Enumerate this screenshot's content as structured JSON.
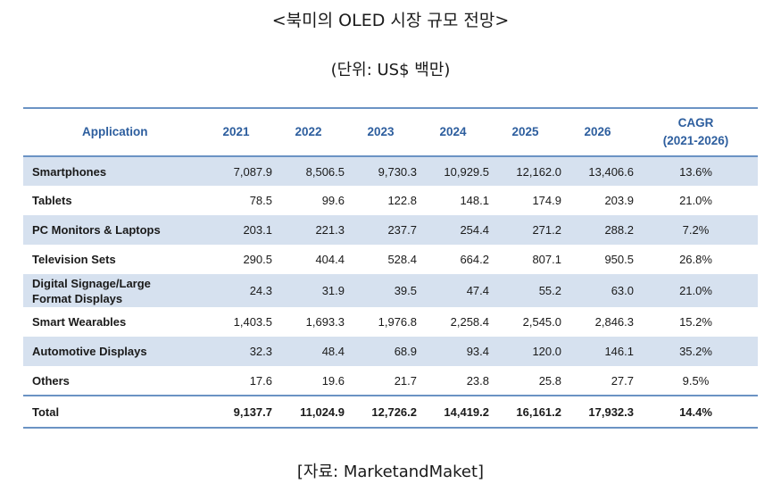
{
  "title": "<북미의 OLED 시장 규모 전망>",
  "unit_note": "(단위: US$ 백만)",
  "source": "[자료: MarketandMaket]",
  "table": {
    "headers": [
      "Application",
      "2021",
      "2022",
      "2023",
      "2024",
      "2025",
      "2026",
      "CAGR",
      "(2021-2026)"
    ],
    "rows": [
      {
        "name": "Smartphones",
        "values": [
          "7,087.9",
          "8,506.5",
          "9,730.3",
          "10,929.5",
          "12,162.0",
          "13,406.6"
        ],
        "cagr": "13.6%"
      },
      {
        "name": "Tablets",
        "values": [
          "78.5",
          "99.6",
          "122.8",
          "148.1",
          "174.9",
          "203.9"
        ],
        "cagr": "21.0%"
      },
      {
        "name": "PC Monitors & Laptops",
        "values": [
          "203.1",
          "221.3",
          "237.7",
          "254.4",
          "271.2",
          "288.2"
        ],
        "cagr": "7.2%"
      },
      {
        "name": "Television Sets",
        "values": [
          "290.5",
          "404.4",
          "528.4",
          "664.2",
          "807.1",
          "950.5"
        ],
        "cagr": "26.8%"
      },
      {
        "name": "Digital Signage/Large",
        "name2": "Format Displays",
        "values": [
          "24.3",
          "31.9",
          "39.5",
          "47.4",
          "55.2",
          "63.0"
        ],
        "cagr": "21.0%"
      },
      {
        "name": "Smart Wearables",
        "values": [
          "1,403.5",
          "1,693.3",
          "1,976.8",
          "2,258.4",
          "2,545.0",
          "2,846.3"
        ],
        "cagr": "15.2%"
      },
      {
        "name": "Automotive Displays",
        "values": [
          "32.3",
          "48.4",
          "68.9",
          "93.4",
          "120.0",
          "146.1"
        ],
        "cagr": "35.2%"
      },
      {
        "name": "Others",
        "values": [
          "17.6",
          "19.6",
          "21.7",
          "23.8",
          "25.8",
          "27.7"
        ],
        "cagr": "9.5%"
      }
    ],
    "total": {
      "name": "Total",
      "values": [
        "9,137.7",
        "11,024.9",
        "12,726.2",
        "14,419.2",
        "16,161.2",
        "17,932.3"
      ],
      "cagr": "14.4%"
    }
  },
  "colors": {
    "header_text": "#2d5e9e",
    "rule": "#6b93c4",
    "stripe": "#d6e1ef"
  }
}
